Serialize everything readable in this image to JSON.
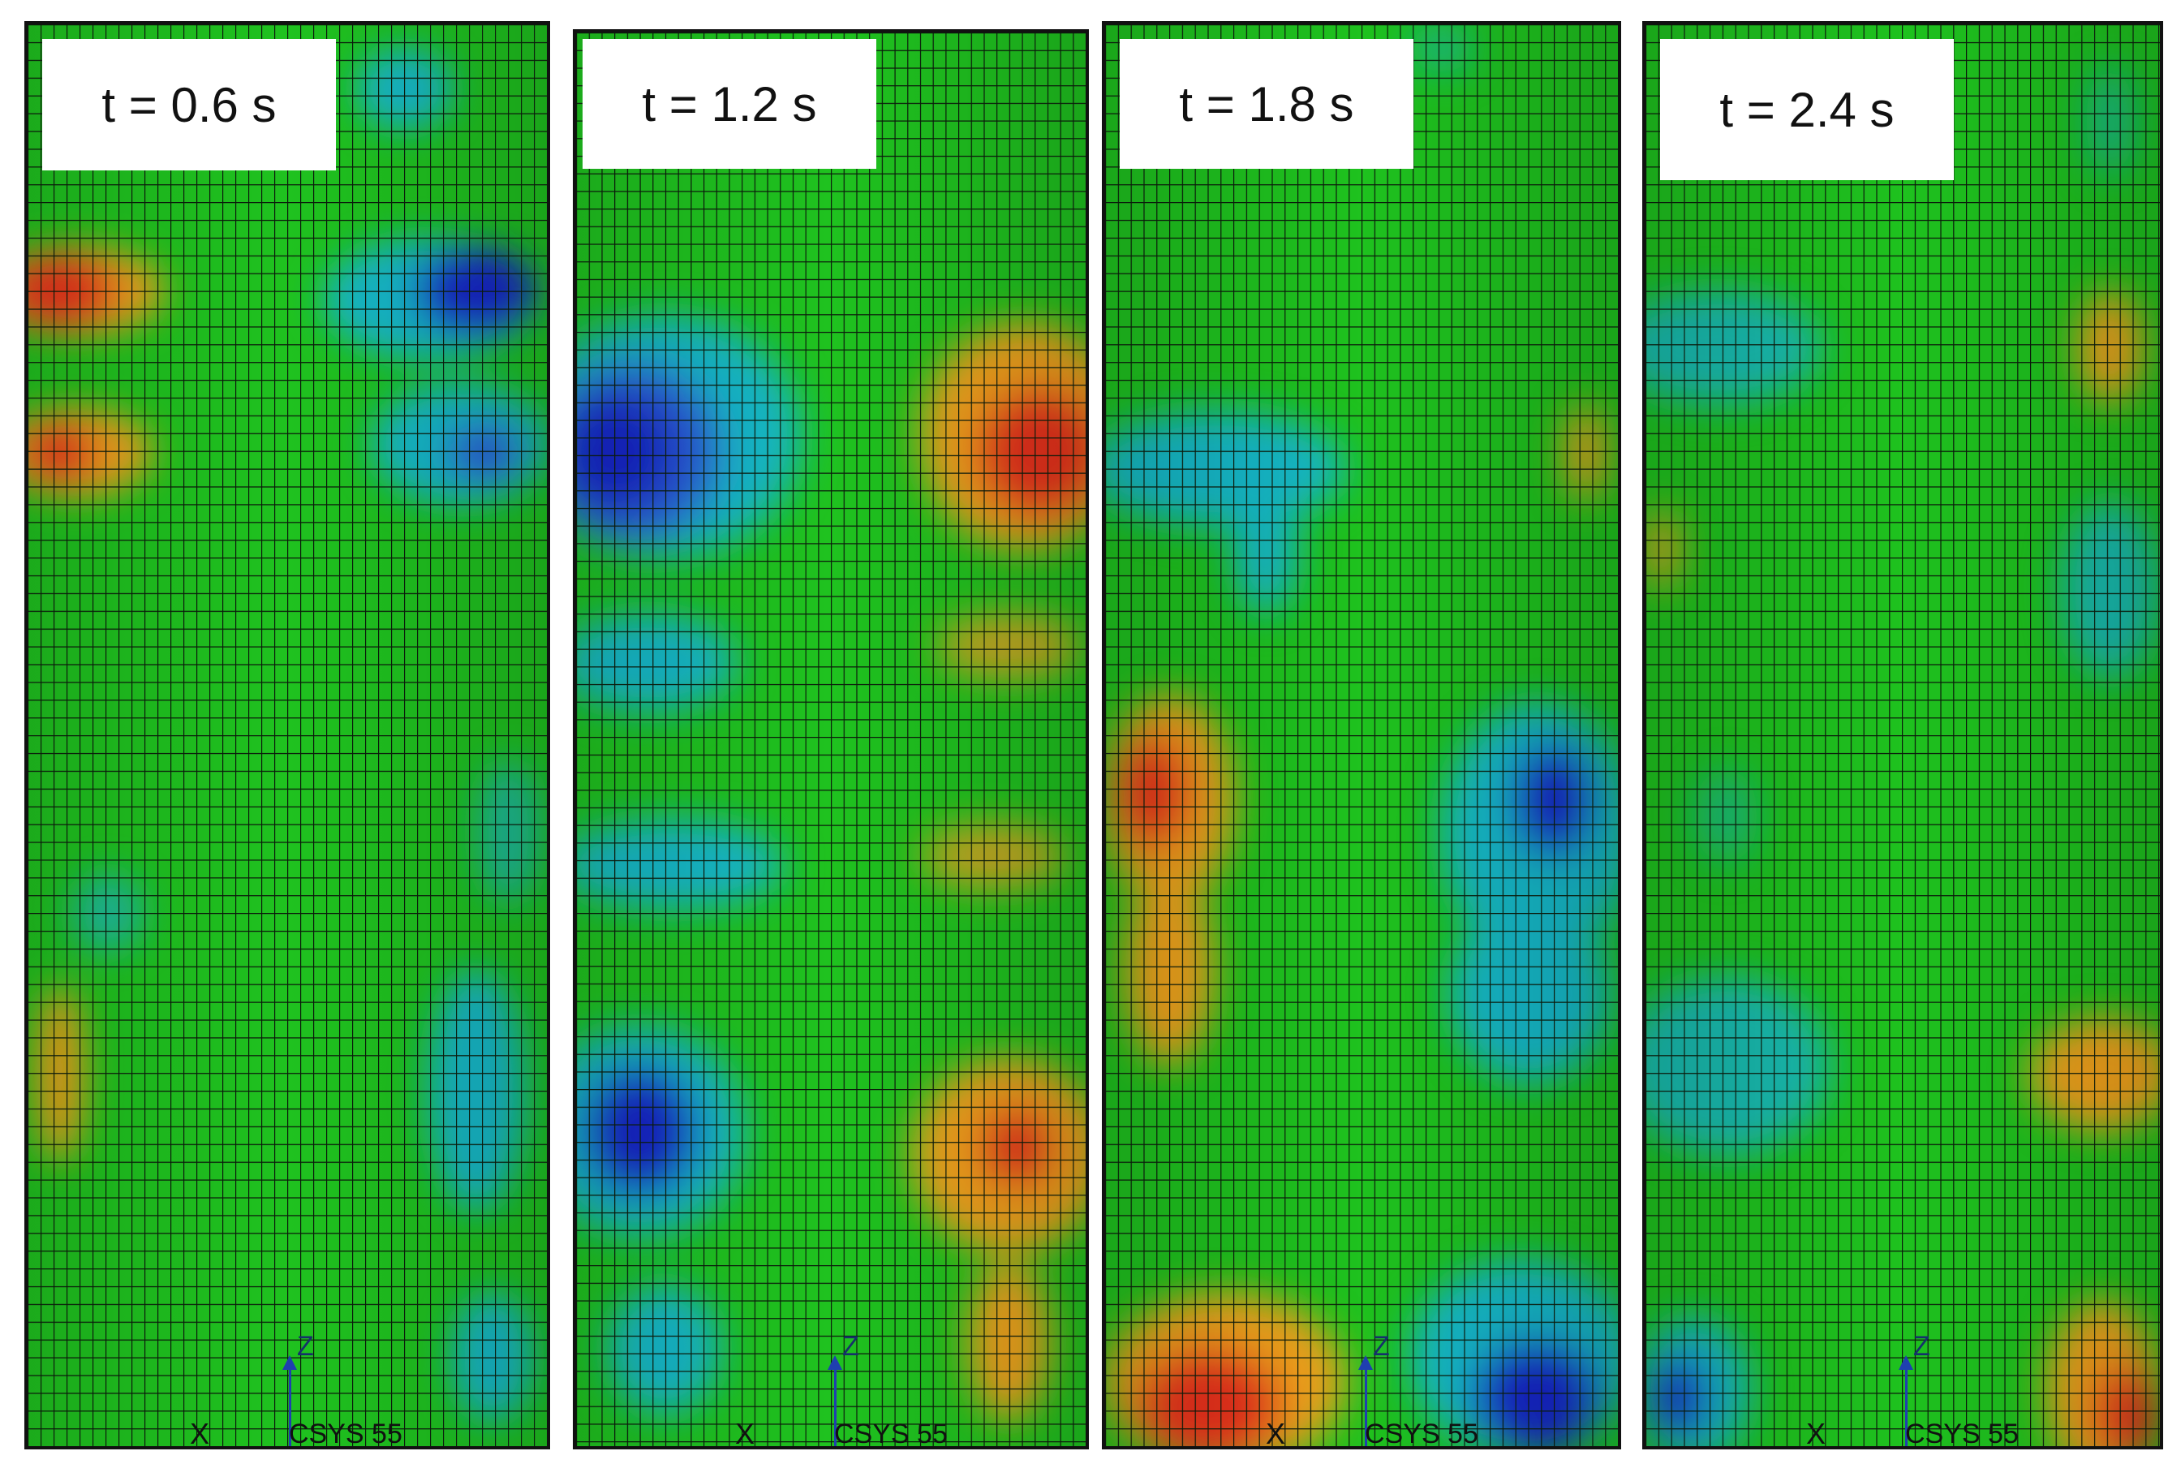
{
  "panels": [
    {
      "label": "t = 0.6 s",
      "axis_z": "Z",
      "axis_x": "X",
      "csys": "CSYS 55"
    },
    {
      "label": "t = 1.2 s",
      "axis_z": "Z",
      "axis_x": "X",
      "csys": "CSYS 55"
    },
    {
      "label": "t = 1.8 s",
      "axis_z": "Z",
      "axis_x": "X",
      "csys": "CSYS 55"
    },
    {
      "label": "t = 2.4 s",
      "axis_z": "Z",
      "axis_x": "X",
      "csys": "CSYS 55"
    }
  ],
  "colors": {
    "background_field": "#1fc21f",
    "mesh": "#0b1a0b",
    "hot": "#e8321e",
    "warm": "#f2a21e",
    "cold": "#1426c8",
    "cool": "#18b8c8"
  }
}
